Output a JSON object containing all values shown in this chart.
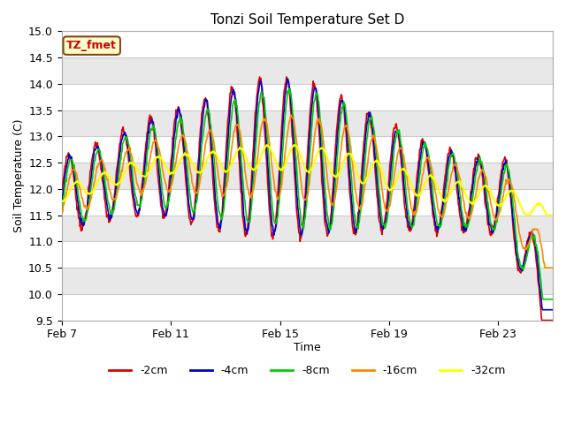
{
  "title": "Tonzi Soil Temperature Set D",
  "xlabel": "Time",
  "ylabel": "Soil Temperature (C)",
  "ylim": [
    9.5,
    15.0
  ],
  "yticks": [
    9.5,
    10.0,
    10.5,
    11.0,
    11.5,
    12.0,
    12.5,
    13.0,
    13.5,
    14.0,
    14.5,
    15.0
  ],
  "x_tick_labels": [
    "Feb 7",
    "Feb 11",
    "Feb 15",
    "Feb 19",
    "Feb 23"
  ],
  "x_tick_positions": [
    0,
    4,
    8,
    12,
    16
  ],
  "xlim": [
    0,
    18
  ],
  "legend_label": "TZ_fmet",
  "legend_bg": "#ffffcc",
  "legend_border": "#8b4513",
  "colors": {
    "-2cm": "#dd0000",
    "-4cm": "#0000cc",
    "-8cm": "#00cc00",
    "-16cm": "#ff8800",
    "-32cm": "#ffff00"
  },
  "band_colors": [
    "#ffffff",
    "#e8e8e8"
  ],
  "fig_bg": "#ffffff",
  "ax_bg": "#ffffff"
}
